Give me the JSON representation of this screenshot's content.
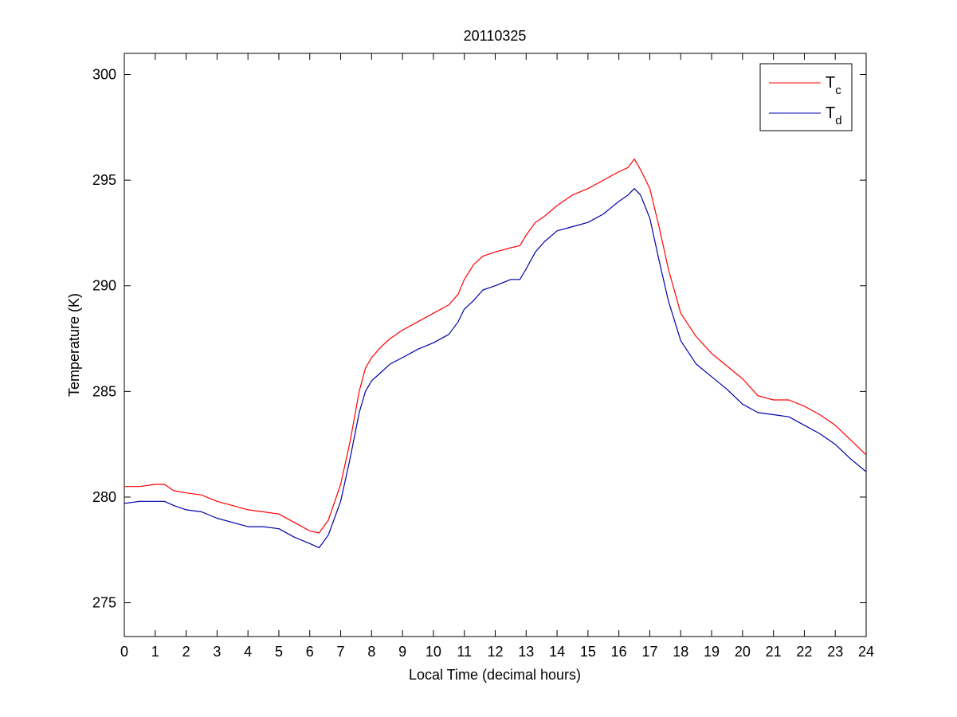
{
  "chart_data": {
    "type": "line",
    "title": "20110325",
    "xlabel": "Local Time (decimal hours)",
    "ylabel": "Temperature (K)",
    "xlim": [
      0,
      24
    ],
    "ylim": [
      273.4,
      301
    ],
    "xticks": [
      0,
      1,
      2,
      3,
      4,
      5,
      6,
      7,
      8,
      9,
      10,
      11,
      12,
      13,
      14,
      15,
      16,
      17,
      18,
      19,
      20,
      21,
      22,
      23,
      24
    ],
    "yticks": [
      275,
      280,
      285,
      290,
      295,
      300
    ],
    "grid": false,
    "legend_position": "top-right",
    "series": [
      {
        "name": "T",
        "subscript": "c",
        "color": "#ff0000",
        "x": [
          0,
          0.5,
          1.0,
          1.3,
          1.6,
          2.0,
          2.5,
          3.0,
          3.5,
          4.0,
          4.5,
          5.0,
          5.5,
          6.0,
          6.3,
          6.6,
          7.0,
          7.3,
          7.6,
          7.8,
          8.0,
          8.3,
          8.6,
          9.0,
          9.5,
          10.0,
          10.5,
          10.8,
          11.0,
          11.3,
          11.6,
          12.0,
          12.5,
          12.8,
          13.0,
          13.3,
          13.6,
          14.0,
          14.5,
          15.0,
          15.5,
          16.0,
          16.3,
          16.5,
          16.7,
          17.0,
          17.3,
          17.6,
          18.0,
          18.5,
          19.0,
          19.5,
          20.0,
          20.5,
          21.0,
          21.5,
          22.0,
          22.5,
          23.0,
          23.5,
          24.0
        ],
        "values": [
          280.5,
          280.5,
          280.6,
          280.6,
          280.3,
          280.2,
          280.1,
          279.8,
          279.6,
          279.4,
          279.3,
          279.2,
          278.8,
          278.4,
          278.3,
          278.9,
          280.6,
          282.6,
          285.0,
          286.1,
          286.6,
          287.1,
          287.5,
          287.9,
          288.3,
          288.7,
          289.1,
          289.6,
          290.3,
          291.0,
          291.4,
          291.6,
          291.8,
          291.9,
          292.4,
          293.0,
          293.3,
          293.8,
          294.3,
          294.6,
          295.0,
          295.4,
          295.6,
          296.0,
          295.5,
          294.6,
          292.8,
          290.8,
          288.7,
          287.6,
          286.8,
          286.2,
          285.6,
          284.8,
          284.6,
          284.6,
          284.3,
          283.9,
          283.4,
          282.7,
          282.0
        ]
      },
      {
        "name": "T",
        "subscript": "d",
        "color": "#0000aa",
        "x": [
          0,
          0.5,
          1.0,
          1.3,
          1.6,
          2.0,
          2.5,
          3.0,
          3.5,
          4.0,
          4.5,
          5.0,
          5.5,
          6.0,
          6.3,
          6.6,
          7.0,
          7.3,
          7.6,
          7.8,
          8.0,
          8.3,
          8.6,
          9.0,
          9.5,
          10.0,
          10.5,
          10.8,
          11.0,
          11.3,
          11.6,
          12.0,
          12.5,
          12.8,
          13.0,
          13.3,
          13.6,
          14.0,
          14.5,
          15.0,
          15.5,
          16.0,
          16.3,
          16.5,
          16.7,
          17.0,
          17.3,
          17.6,
          18.0,
          18.5,
          19.0,
          19.5,
          20.0,
          20.5,
          21.0,
          21.5,
          22.0,
          22.5,
          23.0,
          23.5,
          24.0
        ],
        "values": [
          279.7,
          279.8,
          279.8,
          279.8,
          279.6,
          279.4,
          279.3,
          279.0,
          278.8,
          278.6,
          278.6,
          278.5,
          278.1,
          277.8,
          277.6,
          278.2,
          279.8,
          281.8,
          284.0,
          285.0,
          285.5,
          285.9,
          286.3,
          286.6,
          287.0,
          287.3,
          287.7,
          288.3,
          288.9,
          289.3,
          289.8,
          290.0,
          290.3,
          290.3,
          290.8,
          291.6,
          292.1,
          292.6,
          292.8,
          293.0,
          293.4,
          294.0,
          294.3,
          294.6,
          294.3,
          293.2,
          291.2,
          289.3,
          287.4,
          286.3,
          285.7,
          285.1,
          284.4,
          284.0,
          283.9,
          283.8,
          283.4,
          283.0,
          282.5,
          281.8,
          281.2
        ]
      }
    ]
  }
}
